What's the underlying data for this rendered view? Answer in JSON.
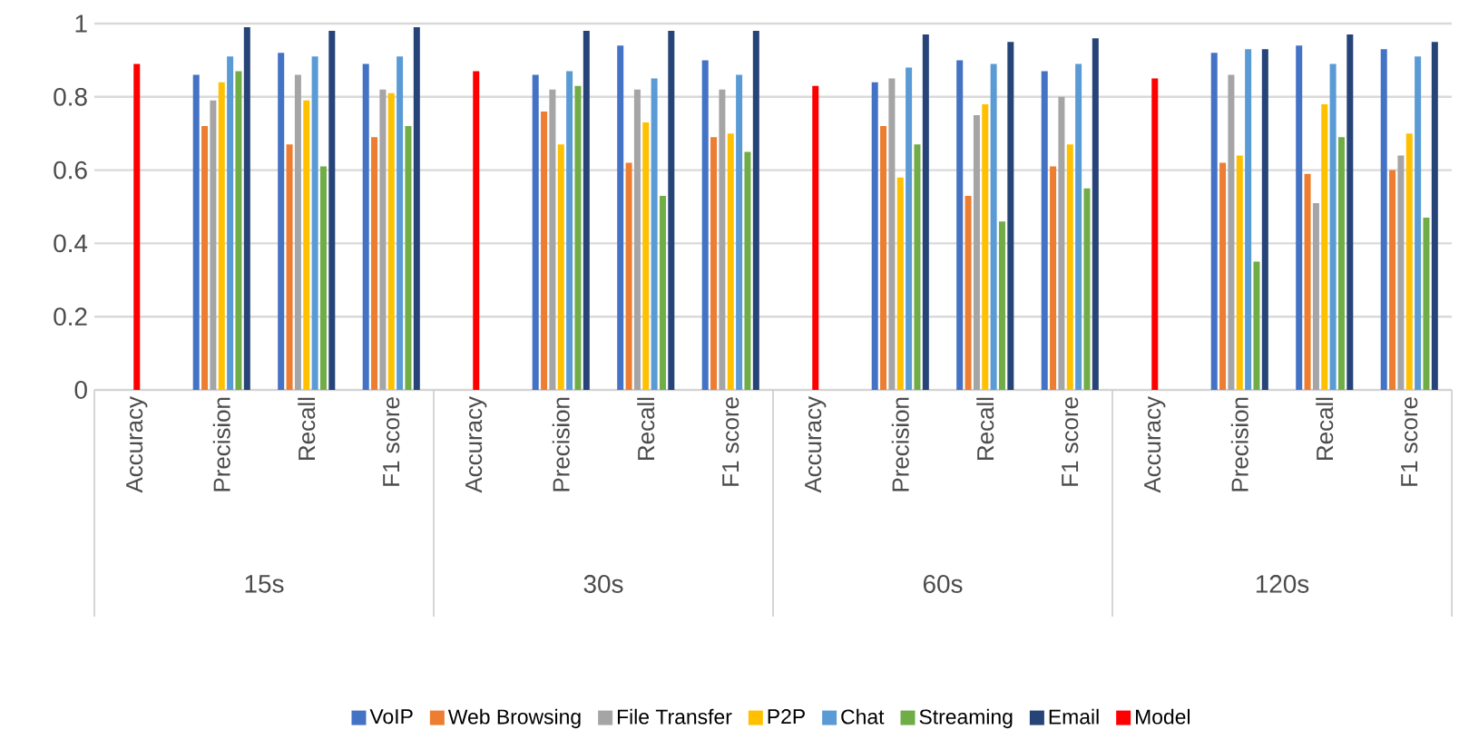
{
  "chart_data": {
    "type": "bar",
    "categories": [
      "Accuracy",
      "Precision",
      "Recall",
      "F1 score",
      "Accuracy",
      "Precision",
      "Recall",
      "F1 score",
      "Accuracy",
      "Precision",
      "Recall",
      "F1 score",
      "Accuracy",
      "Precision",
      "Recall",
      "F1 score"
    ],
    "annotations": [
      "15s",
      "30s",
      "60s",
      "120s"
    ],
    "series": [
      {
        "name": "VoIP",
        "color": "#4472c4",
        "values": [
          null,
          0.86,
          0.92,
          0.89,
          null,
          0.86,
          0.94,
          0.9,
          null,
          0.84,
          0.9,
          0.87,
          null,
          0.92,
          0.94,
          0.93
        ]
      },
      {
        "name": "Web Browsing",
        "color": "#ed7d31",
        "values": [
          null,
          0.72,
          0.67,
          0.69,
          null,
          0.76,
          0.62,
          0.69,
          null,
          0.72,
          0.53,
          0.61,
          null,
          0.62,
          0.59,
          0.6
        ]
      },
      {
        "name": "File Transfer",
        "color": "#a5a5a5",
        "values": [
          null,
          0.79,
          0.86,
          0.82,
          null,
          0.82,
          0.82,
          0.82,
          null,
          0.85,
          0.75,
          0.8,
          null,
          0.86,
          0.51,
          0.64
        ]
      },
      {
        "name": "P2P",
        "color": "#ffc000",
        "values": [
          null,
          0.84,
          0.79,
          0.81,
          null,
          0.67,
          0.73,
          0.7,
          null,
          0.58,
          0.78,
          0.67,
          null,
          0.64,
          0.78,
          0.7
        ]
      },
      {
        "name": "Chat",
        "color": "#5b9bd5",
        "values": [
          null,
          0.91,
          0.91,
          0.91,
          null,
          0.87,
          0.85,
          0.86,
          null,
          0.88,
          0.89,
          0.89,
          null,
          0.93,
          0.89,
          0.91
        ]
      },
      {
        "name": "Streaming",
        "color": "#70ad47",
        "values": [
          null,
          0.87,
          0.61,
          0.72,
          null,
          0.83,
          0.53,
          0.65,
          null,
          0.67,
          0.46,
          0.55,
          null,
          0.35,
          0.69,
          0.47
        ]
      },
      {
        "name": "Email",
        "color": "#264478",
        "values": [
          null,
          0.99,
          0.98,
          0.99,
          null,
          0.98,
          0.98,
          0.98,
          null,
          0.97,
          0.95,
          0.96,
          null,
          0.93,
          0.97,
          0.95
        ]
      },
      {
        "name": "Model",
        "color": "#ff0000",
        "values": [
          0.89,
          null,
          null,
          null,
          0.87,
          null,
          null,
          null,
          0.83,
          null,
          null,
          null,
          0.85,
          null,
          null,
          null
        ]
      }
    ],
    "ylim": [
      0,
      1
    ],
    "yticks": [
      0,
      0.2,
      0.4,
      0.6,
      0.8,
      1
    ],
    "grid": "y",
    "legend": "bottom"
  }
}
